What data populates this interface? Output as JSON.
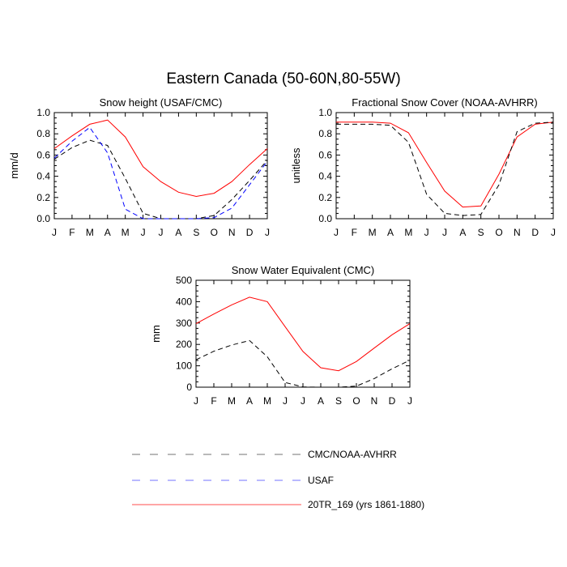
{
  "title": "Eastern Canada (50-60N,80-55W)",
  "colors": {
    "cmc": "#000000",
    "usaf": "#0000ff",
    "model": "#ff0000"
  },
  "legend": [
    {
      "key": "cmc",
      "label": "CMC/NOAA-AVHRR",
      "style": "dashed"
    },
    {
      "key": "usaf",
      "label": "USAF",
      "style": "dashed"
    },
    {
      "key": "model",
      "label": "20TR_169 (yrs 1861-1880)",
      "style": "solid"
    }
  ],
  "chart_data": [
    {
      "type": "line",
      "title": "Snow height (USAF/CMC)",
      "ylabel": "mm/d",
      "categories": [
        "J",
        "F",
        "M",
        "A",
        "M",
        "J",
        "J",
        "A",
        "S",
        "O",
        "N",
        "D",
        "J"
      ],
      "ylim": [
        0,
        1.0
      ],
      "yticks": [
        "0.0",
        "0.2",
        "0.4",
        "0.6",
        "0.8",
        "1.0"
      ],
      "series": [
        {
          "key": "model",
          "values": [
            0.66,
            0.78,
            0.89,
            0.93,
            0.77,
            0.49,
            0.35,
            0.25,
            0.21,
            0.24,
            0.35,
            0.51,
            0.66
          ]
        },
        {
          "key": "cmc",
          "values": [
            0.56,
            0.67,
            0.74,
            0.69,
            0.38,
            0.05,
            0.0,
            0.0,
            0.0,
            0.03,
            0.18,
            0.36,
            0.55
          ]
        },
        {
          "key": "usaf",
          "values": [
            0.57,
            0.73,
            0.86,
            0.62,
            0.09,
            0.0,
            0.0,
            0.0,
            0.0,
            0.01,
            0.1,
            0.32,
            0.54
          ]
        }
      ]
    },
    {
      "type": "line",
      "title": "Fractional Snow Cover (NOAA-AVHRR)",
      "ylabel": "unitless",
      "categories": [
        "J",
        "F",
        "M",
        "A",
        "M",
        "J",
        "J",
        "A",
        "S",
        "O",
        "N",
        "D",
        "J"
      ],
      "ylim": [
        0,
        1.0
      ],
      "yticks": [
        "0.0",
        "0.2",
        "0.4",
        "0.6",
        "0.8",
        "1.0"
      ],
      "series": [
        {
          "key": "model",
          "values": [
            0.91,
            0.91,
            0.91,
            0.9,
            0.81,
            0.53,
            0.26,
            0.11,
            0.12,
            0.42,
            0.77,
            0.89,
            0.91
          ]
        },
        {
          "key": "cmc",
          "values": [
            0.89,
            0.89,
            0.89,
            0.88,
            0.72,
            0.23,
            0.05,
            0.03,
            0.04,
            0.32,
            0.82,
            0.9,
            0.91
          ]
        }
      ]
    },
    {
      "type": "line",
      "title": "Snow Water Equivalent (CMC)",
      "ylabel": "mm",
      "categories": [
        "J",
        "F",
        "M",
        "A",
        "M",
        "J",
        "J",
        "A",
        "S",
        "O",
        "N",
        "D",
        "J"
      ],
      "ylim": [
        0,
        500
      ],
      "yticks": [
        "0",
        "100",
        "200",
        "300",
        "400",
        "500"
      ],
      "series": [
        {
          "key": "model",
          "values": [
            297,
            342,
            385,
            421,
            400,
            283,
            167,
            91,
            77,
            120,
            183,
            245,
            297
          ]
        },
        {
          "key": "cmc",
          "values": [
            128,
            168,
            197,
            218,
            142,
            22,
            1,
            0,
            0,
            5,
            40,
            86,
            126
          ]
        }
      ]
    }
  ]
}
